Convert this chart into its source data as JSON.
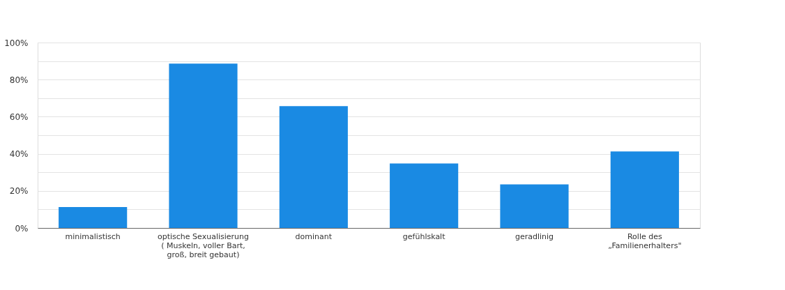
{
  "chart_data": {
    "type": "bar",
    "categories": [
      "minimalistisch",
      "optische Sexualisierung ( Muskeln, voller Bart, groß, breit gebaut)",
      "dominant",
      "gefühlskalt",
      "geradlinig",
      "Rolle des „Familienerhalters\""
    ],
    "values": [
      11.3,
      88.6,
      65.7,
      34.8,
      23.5,
      41.3
    ],
    "color": "#1a8ae3",
    "ylim": [
      0,
      100
    ],
    "yticks": [
      {
        "value": 0,
        "label": "0%"
      },
      {
        "value": 10,
        "label": null
      },
      {
        "value": 20,
        "label": "20%"
      },
      {
        "value": 30,
        "label": null
      },
      {
        "value": 40,
        "label": "40%"
      },
      {
        "value": 50,
        "label": null
      },
      {
        "value": 60,
        "label": "60%"
      },
      {
        "value": 70,
        "label": null
      },
      {
        "value": 80,
        "label": "80%"
      },
      {
        "value": 90,
        "label": null
      },
      {
        "value": 100,
        "label": "100%"
      }
    ],
    "grid": "y"
  }
}
